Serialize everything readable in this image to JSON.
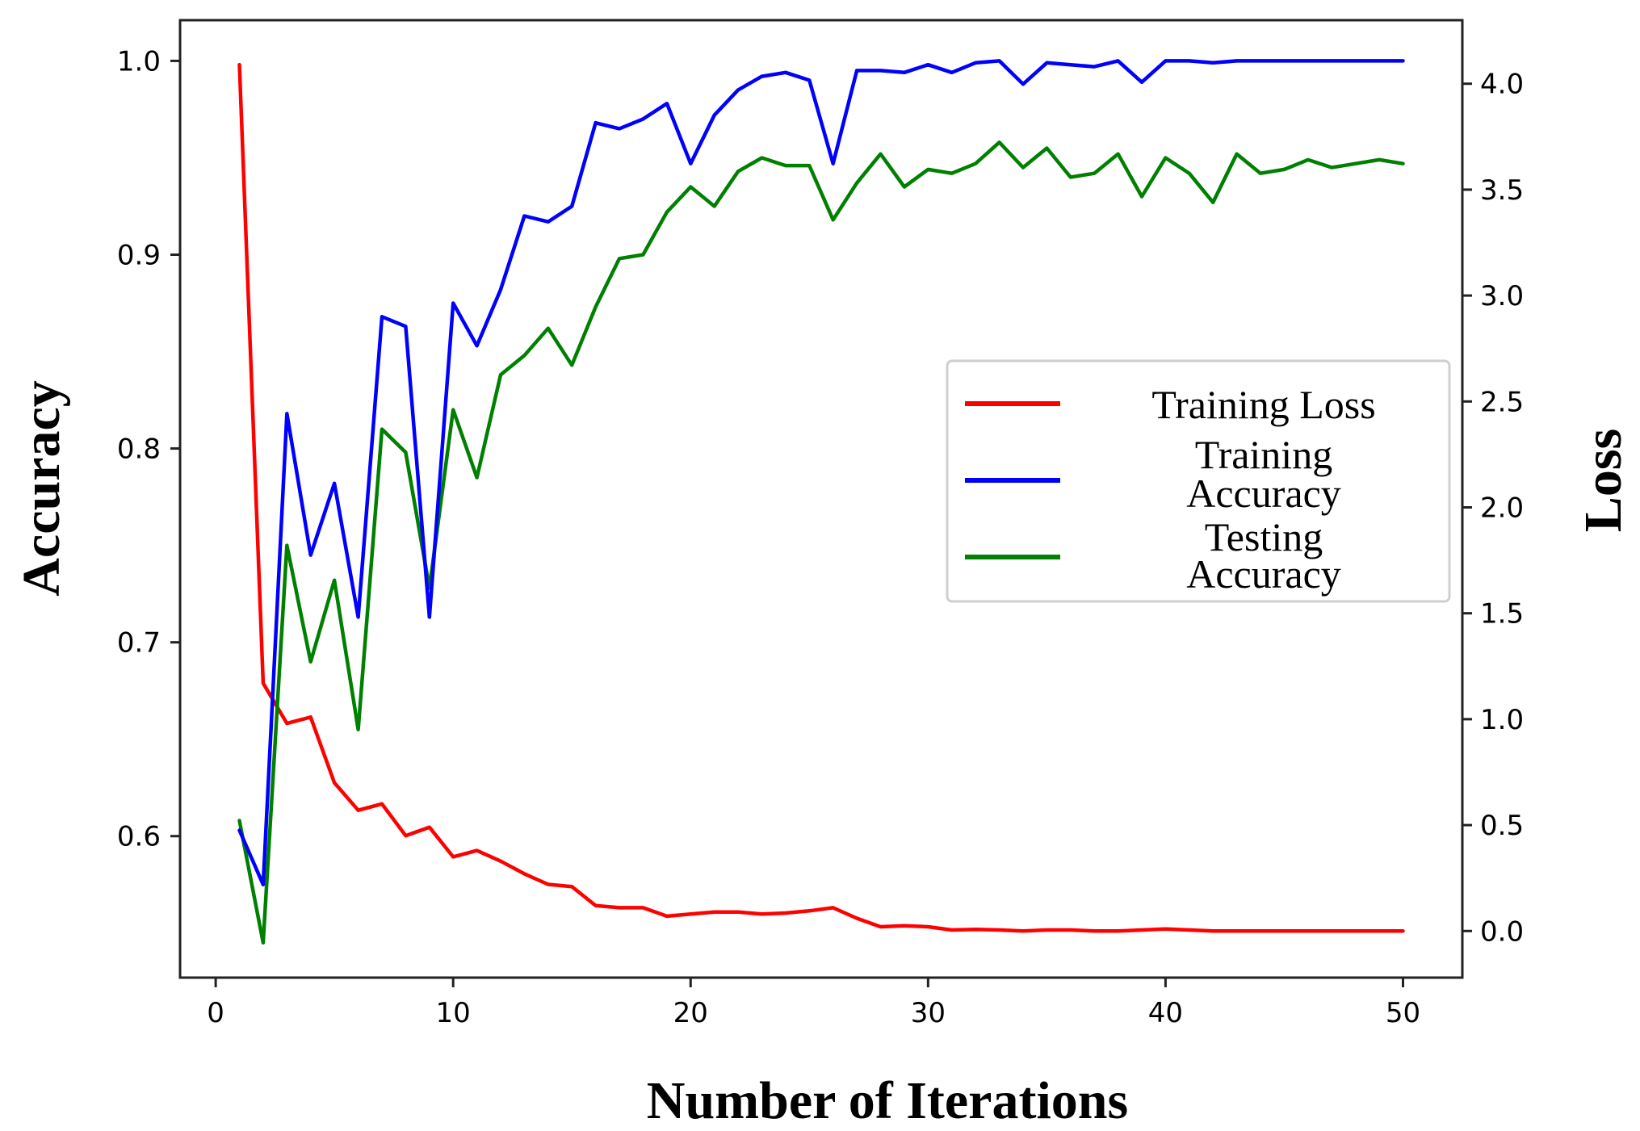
{
  "chart_data": {
    "type": "line",
    "title": "",
    "xlabel": "Number of Iterations",
    "ylabel_left": "Accuracy",
    "ylabel_right": "Loss",
    "xlim": [
      -1.5,
      52.5
    ],
    "ylim_left": [
      0.527,
      1.021
    ],
    "ylim_right": [
      -0.22,
      4.3
    ],
    "xticks": [
      0,
      10,
      20,
      30,
      40,
      50
    ],
    "yticks_left": [
      0.6,
      0.7,
      0.8,
      0.9,
      1.0
    ],
    "yticks_right": [
      0.0,
      0.5,
      1.0,
      1.5,
      2.0,
      2.5,
      3.0,
      3.5,
      4.0
    ],
    "grid": false,
    "legend_position": "center-right",
    "x": [
      1,
      2,
      3,
      4,
      5,
      6,
      7,
      8,
      9,
      10,
      11,
      12,
      13,
      14,
      15,
      16,
      17,
      18,
      19,
      20,
      21,
      22,
      23,
      24,
      25,
      26,
      27,
      28,
      29,
      30,
      31,
      32,
      33,
      34,
      35,
      36,
      37,
      38,
      39,
      40,
      41,
      42,
      43,
      44,
      45,
      46,
      47,
      48,
      49,
      50
    ],
    "series": [
      {
        "name": "Training Loss",
        "legend_lines": [
          "Training Loss"
        ],
        "axis": "right",
        "color": "#ff0000",
        "values": [
          4.09,
          1.17,
          0.98,
          1.01,
          0.7,
          0.57,
          0.6,
          0.45,
          0.49,
          0.35,
          0.38,
          0.33,
          0.27,
          0.22,
          0.21,
          0.12,
          0.11,
          0.11,
          0.07,
          0.08,
          0.09,
          0.09,
          0.08,
          0.085,
          0.095,
          0.11,
          0.06,
          0.02,
          0.025,
          0.02,
          0.005,
          0.008,
          0.005,
          0.0,
          0.005,
          0.005,
          0.0,
          0.0,
          0.005,
          0.01,
          0.005,
          0.0,
          0.0,
          0.0,
          0.0,
          0.0,
          0.0,
          0.0,
          0.0,
          0.0
        ]
      },
      {
        "name": "Training Accuracy",
        "legend_lines": [
          "Training",
          "Accuracy"
        ],
        "axis": "left",
        "color": "#0000ff",
        "values": [
          0.603,
          0.575,
          0.818,
          0.745,
          0.782,
          0.713,
          0.868,
          0.863,
          0.713,
          0.875,
          0.853,
          0.882,
          0.92,
          0.917,
          0.925,
          0.968,
          0.965,
          0.97,
          0.978,
          0.947,
          0.972,
          0.985,
          0.992,
          0.994,
          0.99,
          0.947,
          0.995,
          0.995,
          0.994,
          0.998,
          0.994,
          0.999,
          1.0,
          0.988,
          0.999,
          0.998,
          0.997,
          1.0,
          0.989,
          1.0,
          1.0,
          0.999,
          1.0,
          1.0,
          1.0,
          1.0,
          1.0,
          1.0,
          1.0,
          1.0
        ]
      },
      {
        "name": "Testing Accuracy",
        "legend_lines": [
          "Testing",
          "Accuracy"
        ],
        "axis": "left",
        "color": "#008000",
        "values": [
          0.608,
          0.545,
          0.75,
          0.69,
          0.732,
          0.655,
          0.81,
          0.798,
          0.728,
          0.82,
          0.785,
          0.838,
          0.848,
          0.862,
          0.843,
          0.873,
          0.898,
          0.9,
          0.922,
          0.935,
          0.925,
          0.943,
          0.95,
          0.946,
          0.946,
          0.918,
          0.937,
          0.952,
          0.935,
          0.944,
          0.942,
          0.947,
          0.958,
          0.945,
          0.955,
          0.94,
          0.942,
          0.952,
          0.93,
          0.95,
          0.942,
          0.927,
          0.952,
          0.942,
          0.944,
          0.949,
          0.945,
          0.947,
          0.949,
          0.947
        ]
      }
    ]
  }
}
